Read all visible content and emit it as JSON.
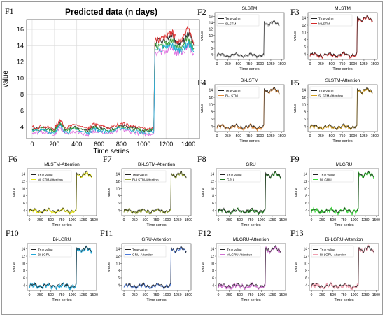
{
  "main_panel": {
    "label": "F1",
    "title": "Predicted data (n days)",
    "xlabel": "Time series",
    "ylabel": "value"
  },
  "chart_data": [
    {
      "id": "F1",
      "type": "line",
      "title": "Predicted data (n days)",
      "xlabel": "Time series",
      "ylabel": "value",
      "xlim": [
        -50,
        1500
      ],
      "ylim": [
        2.6,
        17.2
      ],
      "xticks": [
        0,
        200,
        400,
        600,
        800,
        1000,
        1200,
        1400
      ],
      "yticks": [
        4,
        6,
        8,
        10,
        12,
        14,
        16
      ],
      "grid": true,
      "legend": "none",
      "series": [
        {
          "color": "#333333",
          "x": [
            0,
            100,
            200,
            250,
            300,
            400,
            500,
            550,
            600,
            700,
            800,
            900,
            1000,
            1090,
            1100,
            1200,
            1250,
            1300,
            1350,
            1400,
            1450
          ],
          "values": [
            3.8,
            3.9,
            3.6,
            4.5,
            3.7,
            4.0,
            3.5,
            4.1,
            3.9,
            3.7,
            4.2,
            3.9,
            3.6,
            3.7,
            14.3,
            14.6,
            15.3,
            14.2,
            14.5,
            15.6,
            14.0
          ]
        },
        {
          "color": "#dd3333",
          "x": [
            0,
            100,
            200,
            250,
            300,
            400,
            500,
            550,
            600,
            700,
            800,
            900,
            1000,
            1090,
            1100,
            1200,
            1250,
            1300,
            1350,
            1400,
            1450
          ],
          "values": [
            4.0,
            4.1,
            3.8,
            4.9,
            3.9,
            4.3,
            3.7,
            4.4,
            4.2,
            3.9,
            4.5,
            4.1,
            3.8,
            3.9,
            14.6,
            15.0,
            15.7,
            14.6,
            14.9,
            16.1,
            14.4
          ]
        },
        {
          "color": "#3aa03a",
          "x": [
            0,
            100,
            200,
            250,
            300,
            400,
            500,
            550,
            600,
            700,
            800,
            900,
            1000,
            1090,
            1100,
            1200,
            1250,
            1300,
            1350,
            1400,
            1450
          ],
          "values": [
            3.7,
            3.8,
            3.5,
            4.4,
            3.6,
            3.9,
            3.4,
            4.0,
            3.8,
            3.6,
            4.1,
            3.8,
            3.5,
            3.6,
            13.9,
            14.1,
            14.6,
            13.8,
            14.0,
            14.8,
            13.7
          ]
        },
        {
          "color": "#e070e0",
          "x": [
            0,
            100,
            200,
            250,
            300,
            400,
            500,
            550,
            600,
            700,
            800,
            900,
            1000,
            1090,
            1100,
            1200,
            1250,
            1300,
            1350,
            1400,
            1450
          ],
          "values": [
            3.3,
            3.4,
            3.1,
            3.9,
            3.2,
            3.5,
            3.0,
            3.6,
            3.4,
            3.2,
            3.7,
            3.4,
            3.1,
            3.2,
            13.2,
            13.4,
            13.8,
            13.1,
            13.3,
            14.0,
            13.0
          ]
        },
        {
          "color": "#20b0d0",
          "x": [
            0,
            100,
            200,
            250,
            300,
            400,
            500,
            550,
            600,
            700,
            800,
            900,
            1000,
            1090,
            1100,
            1200,
            1250,
            1300,
            1350,
            1400,
            1450
          ],
          "values": [
            3.5,
            3.6,
            3.3,
            4.2,
            3.4,
            3.7,
            3.2,
            3.8,
            3.6,
            3.4,
            3.9,
            3.6,
            3.3,
            3.4,
            13.5,
            13.7,
            14.1,
            13.4,
            13.6,
            14.3,
            13.3
          ]
        }
      ]
    },
    {
      "id": "F2",
      "type": "line",
      "title": "SLSTM",
      "legend": [
        "True value",
        "SLSTM"
      ],
      "series_colors": [
        "#222222",
        "#aaaaaa"
      ]
    },
    {
      "id": "F3",
      "type": "line",
      "title": "MLSTM",
      "legend": [
        "True value",
        "MLSTM"
      ],
      "series_colors": [
        "#222222",
        "#d42a2a"
      ]
    },
    {
      "id": "F4",
      "type": "line",
      "title": "Bi-LSTM",
      "legend": [
        "True value",
        "Bi-LSTM"
      ],
      "series_colors": [
        "#222222",
        "#e08a3a"
      ]
    },
    {
      "id": "F5",
      "type": "line",
      "title": "SLSTM-Attention",
      "legend": [
        "True value",
        "SLSTM-Attention"
      ],
      "series_colors": [
        "#222222",
        "#d4a020"
      ]
    },
    {
      "id": "F6",
      "type": "line",
      "title": "MLSTM-Attention",
      "legend": [
        "True value",
        "MLSTM-Attention"
      ],
      "series_colors": [
        "#222222",
        "#e6e61a"
      ]
    },
    {
      "id": "F7",
      "type": "line",
      "title": "Bi-LSTM-Attention",
      "legend": [
        "True value",
        "Bi-LSTM-Attention"
      ],
      "series_colors": [
        "#222222",
        "#9aa83a"
      ]
    },
    {
      "id": "F8",
      "type": "line",
      "title": "GRU",
      "legend": [
        "True value",
        "GRU"
      ],
      "series_colors": [
        "#222222",
        "#1f7a1f"
      ]
    },
    {
      "id": "F9",
      "type": "line",
      "title": "MLGRU",
      "legend": [
        "True value",
        "MLGRU"
      ],
      "series_colors": [
        "#222222",
        "#3be03b"
      ]
    },
    {
      "id": "F10",
      "type": "line",
      "title": "Bi-LGRU",
      "legend": [
        "True value",
        "Bi-LGRU"
      ],
      "series_colors": [
        "#222222",
        "#22a8d8"
      ]
    },
    {
      "id": "F11",
      "type": "line",
      "title": "GRU-Attention",
      "legend": [
        "True value",
        "GRU-Attention"
      ],
      "series_colors": [
        "#222222",
        "#4a78d8"
      ]
    },
    {
      "id": "F12",
      "type": "line",
      "title": "MLGRU-Attention",
      "legend": [
        "True value",
        "MLGRU-Attention"
      ],
      "series_colors": [
        "#222222",
        "#d070d0"
      ]
    },
    {
      "id": "F13",
      "type": "line",
      "title": "Bi-LGRU-Attention",
      "legend": [
        "True value",
        "Bi-LGRU-Attention"
      ],
      "series_colors": [
        "#222222",
        "#f0a0b0"
      ]
    }
  ],
  "small_panels_common": {
    "xlabel": "Time series",
    "ylabel": "value",
    "xticks": [
      0,
      250,
      500,
      750,
      1000,
      1250,
      1500
    ],
    "yticks_F2": [
      4,
      6,
      8,
      10,
      12,
      14,
      16
    ],
    "yticks": [
      4,
      6,
      8,
      10,
      12,
      14
    ],
    "ylim": [
      2.5,
      15.5
    ],
    "xlim": [
      -50,
      1560
    ],
    "step_at": 1090,
    "low_level": 3.7,
    "high_level": 13.8
  }
}
